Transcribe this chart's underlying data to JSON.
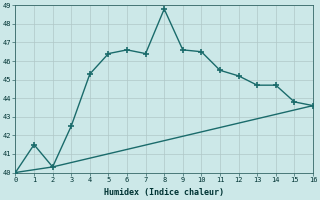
{
  "xlabel": "Humidex (Indice chaleur)",
  "xlim": [
    0,
    16
  ],
  "ylim": [
    40,
    49
  ],
  "yticks": [
    40,
    41,
    42,
    43,
    44,
    45,
    46,
    47,
    48,
    49
  ],
  "xticks": [
    0,
    1,
    2,
    3,
    4,
    5,
    6,
    7,
    8,
    9,
    10,
    11,
    12,
    13,
    14,
    15,
    16
  ],
  "bg_color": "#cce8e8",
  "line_color": "#1a6b6b",
  "grid_color": "#b0c8c8",
  "line1_x": [
    0,
    1,
    2,
    3,
    4,
    5,
    6,
    7,
    8,
    9,
    10,
    11,
    12,
    13,
    14,
    15,
    16
  ],
  "line1_y": [
    40.0,
    41.5,
    40.3,
    42.5,
    45.3,
    46.4,
    46.6,
    46.4,
    48.8,
    46.6,
    46.5,
    45.5,
    45.2,
    44.7,
    44.7,
    43.8,
    43.6
  ],
  "line2_x": [
    0,
    2,
    16
  ],
  "line2_y": [
    40.0,
    40.3,
    43.6
  ],
  "marker": "+",
  "marker_size": 4,
  "marker_mew": 1.2,
  "line_width": 1.0,
  "font_size_tick": 5,
  "font_size_label": 6
}
